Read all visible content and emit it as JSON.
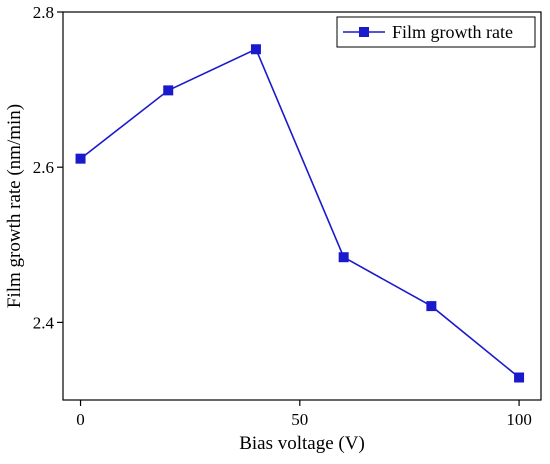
{
  "chart_data": {
    "type": "line",
    "title": "",
    "xlabel": "Bias voltage (V)",
    "ylabel": "Film growth rate (nm/min)",
    "xlim": [
      -4,
      105
    ],
    "ylim": [
      2.3,
      2.8
    ],
    "xticks": [
      0,
      50,
      100
    ],
    "yticks": [
      2.4,
      2.6,
      2.8
    ],
    "xtick_labels": [
      "0",
      "50",
      "100"
    ],
    "ytick_labels": [
      "2.4",
      "2.6",
      "2.8"
    ],
    "grid": false,
    "legend_position": "top-right",
    "series": [
      {
        "name": "Film growth rate",
        "color": "#1a1acc",
        "marker": "square",
        "x": [
          0,
          20,
          40,
          60,
          80,
          100
        ],
        "y": [
          2.611,
          2.699,
          2.752,
          2.484,
          2.421,
          2.329
        ]
      }
    ]
  }
}
